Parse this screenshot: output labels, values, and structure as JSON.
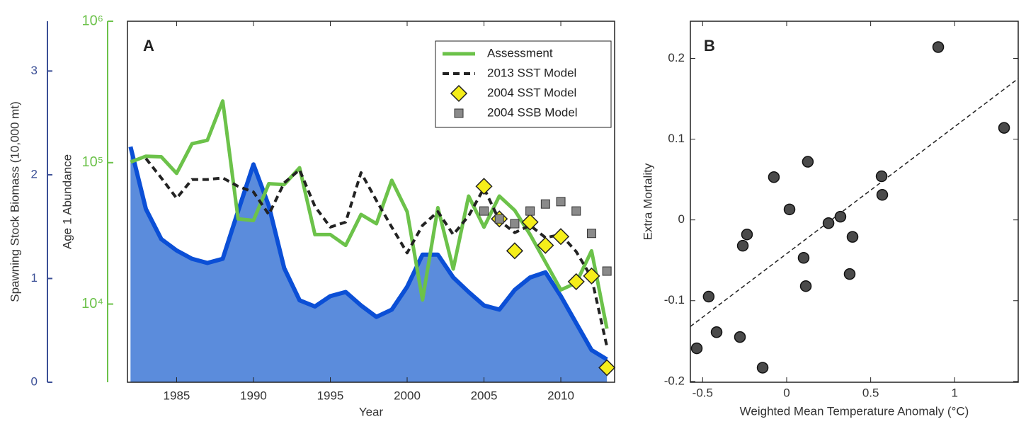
{
  "chart_data": [
    {
      "type": "line",
      "title": "A",
      "xlabel": "Year",
      "ylabel": "Spawning Stock Biomass (10,000 mt)",
      "y2label": "Age 1 Abundance",
      "x": [
        1982,
        1983,
        1984,
        1985,
        1986,
        1987,
        1988,
        1989,
        1990,
        1991,
        1992,
        1993,
        1994,
        1995,
        1996,
        1997,
        1998,
        1999,
        2000,
        2001,
        2002,
        2003,
        2004,
        2005,
        2006,
        2007,
        2008,
        2009,
        2010,
        2011,
        2012,
        2013
      ],
      "xlim": [
        1981.8,
        2013.5
      ],
      "xticks": [
        1985,
        1990,
        1995,
        2000,
        2005,
        2010
      ],
      "ylim": [
        0,
        3.48
      ],
      "yticks": [
        0,
        1,
        2,
        3
      ],
      "ycolor": "#3b4f96",
      "y2lim": [
        2800,
        1000000
      ],
      "y2scale": "log",
      "y2color": "#6cc24a",
      "y2ticks": [
        {
          "value": 10000,
          "label": "10⁴"
        },
        {
          "value": 100000,
          "label": "10⁵"
        },
        {
          "value": 1000000,
          "label": "10⁶"
        }
      ],
      "legend": "upper right",
      "series": [
        {
          "color": "#5b8cdc",
          "edge": "#0b4fd6",
          "mark": "area",
          "axis": "y",
          "values": [
            2.27,
            1.67,
            1.38,
            1.27,
            1.19,
            1.15,
            1.19,
            1.65,
            2.1,
            1.7,
            1.1,
            0.79,
            0.73,
            0.83,
            0.87,
            0.74,
            0.63,
            0.7,
            0.92,
            1.23,
            1.23,
            1.01,
            0.87,
            0.74,
            0.7,
            0.89,
            1.01,
            1.06,
            0.83,
            0.57,
            0.31,
            0.22
          ]
        },
        {
          "name": "Assessment",
          "color": "#6cc24a",
          "mark": "line",
          "axis": "y2",
          "values": [
            101000,
            111000,
            110000,
            84000,
            136000,
            144000,
            273000,
            40000,
            39000,
            71000,
            70000,
            92000,
            31000,
            31000,
            26000,
            43000,
            37000,
            75000,
            45000,
            10700,
            48000,
            17700,
            58000,
            35000,
            58000,
            46000,
            31000,
            19800,
            12600,
            14100,
            23800,
            6700
          ]
        },
        {
          "name": "2013 SST Model",
          "color": "#222222",
          "mark": "dashed",
          "axis": "y2",
          "values": [
            null,
            107000,
            78000,
            56000,
            76000,
            76000,
            78000,
            68000,
            62000,
            43000,
            72000,
            89000,
            49000,
            35000,
            38000,
            85000,
            54000,
            35000,
            23000,
            36000,
            45000,
            31000,
            42000,
            66000,
            39000,
            32000,
            36000,
            29500,
            31000,
            23500,
            15400,
            5000
          ]
        },
        {
          "name": "2004 SST Model",
          "color": "#f5ee1a",
          "mark": "diamond",
          "axis": "y2",
          "values": [
            null,
            null,
            null,
            null,
            null,
            null,
            null,
            null,
            null,
            null,
            null,
            null,
            null,
            null,
            null,
            null,
            null,
            null,
            null,
            null,
            null,
            null,
            null,
            68000,
            40000,
            23800,
            38000,
            26000,
            30000,
            14400,
            15800,
            3550
          ]
        },
        {
          "name": "2004 SSB Model",
          "color": "#8a8a8a",
          "mark": "square",
          "axis": "y2",
          "values": [
            null,
            null,
            null,
            null,
            null,
            null,
            null,
            null,
            null,
            null,
            null,
            null,
            null,
            null,
            null,
            null,
            null,
            null,
            null,
            null,
            null,
            null,
            null,
            45500,
            40000,
            37000,
            45500,
            51000,
            53000,
            45500,
            31600,
            17100
          ]
        }
      ]
    },
    {
      "type": "scatter",
      "title": "B",
      "xlabel": "Weighted Mean Temperature Anomaly (°C)",
      "ylabel": "Extra Mortality",
      "xlim": [
        -0.573,
        1.378
      ],
      "xticks": [
        -0.5,
        0,
        0.5,
        1
      ],
      "ylim": [
        -0.201,
        0.246
      ],
      "yticks": [
        -0.2,
        -0.1,
        0,
        0.1,
        0.2
      ],
      "color": "#4a4a4a",
      "x": [
        -0.535,
        -0.464,
        -0.417,
        -0.278,
        -0.261,
        -0.236,
        -0.143,
        -0.076,
        0.017,
        0.101,
        0.114,
        0.126,
        0.249,
        0.32,
        0.375,
        0.392,
        0.565,
        0.569,
        0.902,
        1.294
      ],
      "y": [
        -0.159,
        -0.095,
        -0.139,
        -0.145,
        -0.032,
        -0.018,
        -0.183,
        0.053,
        0.013,
        -0.047,
        -0.082,
        0.072,
        -0.004,
        0.004,
        -0.067,
        -0.021,
        0.054,
        0.031,
        0.214,
        0.114
      ],
      "trend": {
        "x": [
          -0.573,
          1.378
        ],
        "y": [
          -0.132,
          0.175
        ]
      }
    }
  ]
}
